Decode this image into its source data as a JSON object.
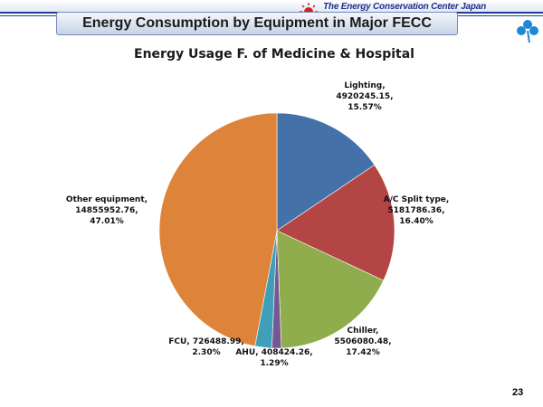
{
  "header": {
    "slide_title": "Energy Consumption by Equipment in Major FECC",
    "org_name": "The Energy Conservation Center Japan",
    "org_mark": "ECCJ",
    "page_number": "23"
  },
  "colors": {
    "title_bar_border": "#7a8ab8",
    "header_rule": "#1f3f9a",
    "clover": "#1e88d2"
  },
  "chart_data": {
    "type": "pie",
    "title": "Energy Usage F. of Medicine & Hospital",
    "start_angle_deg": 0,
    "direction": "clockwise",
    "slices": [
      {
        "name": "Lighting",
        "value": 4920245.15,
        "percent": "15.57%",
        "value_label": "4920245.15,",
        "name_label": "Lighting,",
        "color": "#4472a8"
      },
      {
        "name": "A/C Split type",
        "value": 5181786.36,
        "percent": "16.40%",
        "value_label": "5181786.36,",
        "name_label": "A/C Split type,",
        "color": "#b34544"
      },
      {
        "name": "Chiller",
        "value": 5506080.48,
        "percent": "17.42%",
        "value_label": "5506080.48,",
        "name_label": "Chiller,",
        "color": "#8fad4d"
      },
      {
        "name": "AHU",
        "value": 408424.26,
        "percent": "1.29%",
        "value_label": "AHU, 408424.26,",
        "name_label": "",
        "color": "#735891"
      },
      {
        "name": "FCU",
        "value": 726488.99,
        "percent": "2.30%",
        "value_label": "FCU, 726488.99,",
        "name_label": "",
        "color": "#3f9fb8"
      },
      {
        "name": "Other equipment",
        "value": 14855952.76,
        "percent": "47.01%",
        "value_label": "14855952.76,",
        "name_label": "Other equipment,",
        "color": "#de843a"
      }
    ]
  }
}
